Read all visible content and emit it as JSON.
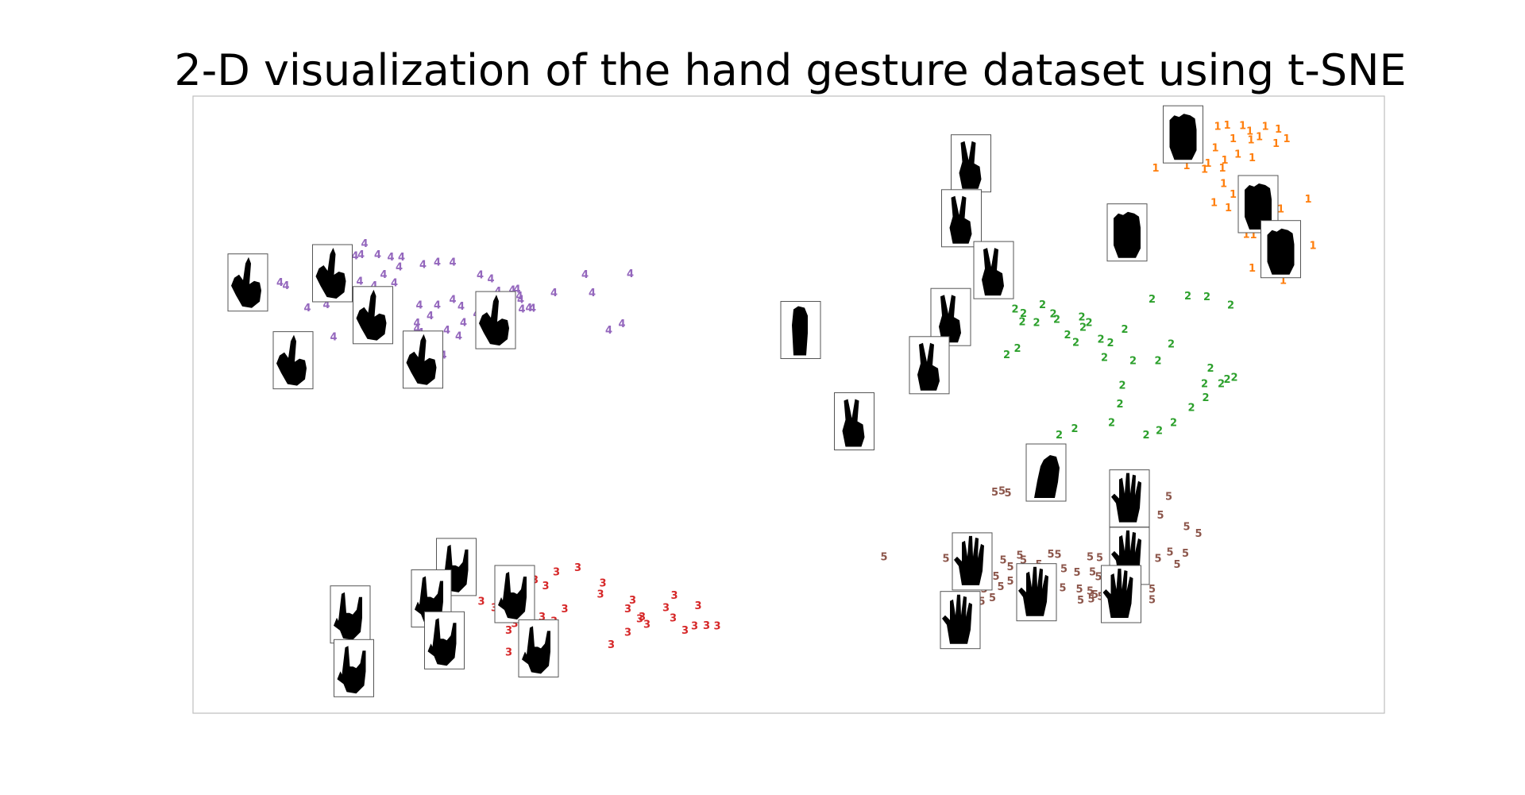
{
  "chart_data": {
    "type": "scatter",
    "title": "2-D visualization of the hand gesture dataset using t-SNE",
    "xlabel": "",
    "ylabel": "",
    "axes_visible": false,
    "grid": false,
    "legend": "none",
    "marker_style": "class-digit text labels with gesture image thumbnails",
    "colors": {
      "1": "#ff7f0e",
      "2": "#2ca02c",
      "3": "#d62728",
      "4": "#9467bd",
      "5": "#8c564b"
    },
    "series": [
      {
        "label": "1",
        "points": [
          [
            0.86,
            0.95
          ],
          [
            0.868,
            0.952
          ],
          [
            0.881,
            0.951
          ],
          [
            0.887,
            0.942
          ],
          [
            0.9,
            0.95
          ],
          [
            0.911,
            0.945
          ],
          [
            0.918,
            0.93
          ],
          [
            0.873,
            0.93
          ],
          [
            0.888,
            0.928
          ],
          [
            0.895,
            0.933
          ],
          [
            0.909,
            0.922
          ],
          [
            0.839,
            0.899
          ],
          [
            0.835,
            0.907
          ],
          [
            0.808,
            0.882
          ],
          [
            0.818,
            0.9
          ],
          [
            0.843,
            0.923
          ],
          [
            0.858,
            0.915
          ],
          [
            0.877,
            0.905
          ],
          [
            0.889,
            0.899
          ],
          [
            0.866,
            0.895
          ],
          [
            0.852,
            0.89
          ],
          [
            0.864,
            0.882
          ],
          [
            0.849,
            0.88
          ],
          [
            0.834,
            0.886
          ],
          [
            0.883,
            0.86
          ],
          [
            0.865,
            0.857
          ],
          [
            0.873,
            0.84
          ],
          [
            0.857,
            0.826
          ],
          [
            0.885,
            0.853
          ],
          [
            0.869,
            0.818
          ],
          [
            0.913,
            0.816
          ],
          [
            0.936,
            0.832
          ],
          [
            0.884,
            0.775
          ],
          [
            0.89,
            0.774
          ],
          [
            0.908,
            0.771
          ],
          [
            0.921,
            0.762
          ],
          [
            0.94,
            0.757
          ],
          [
            0.889,
            0.72
          ],
          [
            0.915,
            0.7
          ]
        ]
      },
      {
        "label": "2",
        "points": [
          [
            0.69,
            0.654
          ],
          [
            0.697,
            0.647
          ],
          [
            0.713,
            0.661
          ],
          [
            0.722,
            0.646
          ],
          [
            0.725,
            0.637
          ],
          [
            0.746,
            0.641
          ],
          [
            0.752,
            0.632
          ],
          [
            0.708,
            0.632
          ],
          [
            0.696,
            0.633
          ],
          [
            0.734,
            0.612
          ],
          [
            0.747,
            0.624
          ],
          [
            0.741,
            0.6
          ],
          [
            0.762,
            0.605
          ],
          [
            0.77,
            0.599
          ],
          [
            0.782,
            0.621
          ],
          [
            0.765,
            0.575
          ],
          [
            0.805,
            0.67
          ],
          [
            0.835,
            0.675
          ],
          [
            0.851,
            0.674
          ],
          [
            0.821,
            0.597
          ],
          [
            0.854,
            0.558
          ],
          [
            0.849,
            0.533
          ],
          [
            0.863,
            0.533
          ],
          [
            0.874,
            0.543
          ],
          [
            0.85,
            0.51
          ],
          [
            0.838,
            0.494
          ],
          [
            0.823,
            0.47
          ],
          [
            0.811,
            0.457
          ],
          [
            0.81,
            0.57
          ],
          [
            0.789,
            0.57
          ],
          [
            0.78,
            0.53
          ],
          [
            0.778,
            0.5
          ],
          [
            0.771,
            0.47
          ],
          [
            0.74,
            0.46
          ],
          [
            0.727,
            0.45
          ],
          [
            0.683,
            0.58
          ],
          [
            0.692,
            0.59
          ],
          [
            0.868,
            0.54
          ],
          [
            0.871,
            0.66
          ],
          [
            0.8,
            0.45
          ]
        ]
      },
      {
        "label": "3",
        "points": [
          [
            0.215,
            0.22
          ],
          [
            0.218,
            0.21
          ],
          [
            0.235,
            0.2
          ],
          [
            0.242,
            0.18
          ],
          [
            0.259,
            0.195
          ],
          [
            0.263,
            0.199
          ],
          [
            0.263,
            0.174
          ],
          [
            0.287,
            0.215
          ],
          [
            0.296,
            0.205
          ],
          [
            0.305,
            0.228
          ],
          [
            0.323,
            0.235
          ],
          [
            0.344,
            0.21
          ],
          [
            0.342,
            0.192
          ],
          [
            0.369,
            0.182
          ],
          [
            0.365,
            0.168
          ],
          [
            0.397,
            0.17
          ],
          [
            0.403,
            0.153
          ],
          [
            0.421,
            0.14
          ],
          [
            0.431,
            0.141
          ],
          [
            0.413,
            0.133
          ],
          [
            0.365,
            0.13
          ],
          [
            0.265,
            0.133
          ],
          [
            0.27,
            0.144
          ],
          [
            0.276,
            0.128
          ],
          [
            0.265,
            0.098
          ],
          [
            0.293,
            0.155
          ],
          [
            0.303,
            0.148
          ],
          [
            0.377,
            0.155
          ],
          [
            0.381,
            0.143
          ],
          [
            0.44,
            0.14
          ],
          [
            0.404,
            0.19
          ],
          [
            0.424,
            0.173
          ],
          [
            0.219,
            0.082
          ],
          [
            0.288,
            0.108
          ],
          [
            0.351,
            0.11
          ],
          [
            0.375,
            0.152
          ],
          [
            0.312,
            0.168
          ],
          [
            0.253,
            0.17
          ]
        ]
      },
      {
        "label": "4",
        "points": [
          [
            0.104,
            0.744
          ],
          [
            0.115,
            0.74
          ],
          [
            0.124,
            0.739
          ],
          [
            0.136,
            0.74
          ],
          [
            0.141,
            0.742
          ],
          [
            0.155,
            0.742
          ],
          [
            0.166,
            0.738
          ],
          [
            0.175,
            0.738
          ],
          [
            0.144,
            0.76
          ],
          [
            0.173,
            0.722
          ],
          [
            0.193,
            0.726
          ],
          [
            0.205,
            0.73
          ],
          [
            0.218,
            0.73
          ],
          [
            0.241,
            0.709
          ],
          [
            0.16,
            0.71
          ],
          [
            0.169,
            0.696
          ],
          [
            0.128,
            0.701
          ],
          [
            0.14,
            0.699
          ],
          [
            0.152,
            0.692
          ],
          [
            0.073,
            0.697
          ],
          [
            0.078,
            0.692
          ],
          [
            0.096,
            0.656
          ],
          [
            0.112,
            0.661
          ],
          [
            0.125,
            0.672
          ],
          [
            0.163,
            0.675
          ],
          [
            0.19,
            0.66
          ],
          [
            0.205,
            0.66
          ],
          [
            0.218,
            0.669
          ],
          [
            0.188,
            0.631
          ],
          [
            0.191,
            0.616
          ],
          [
            0.201,
            0.589
          ],
          [
            0.21,
            0.579
          ],
          [
            0.25,
            0.703
          ],
          [
            0.256,
            0.683
          ],
          [
            0.268,
            0.685
          ],
          [
            0.274,
            0.675
          ],
          [
            0.272,
            0.686
          ],
          [
            0.282,
            0.656
          ],
          [
            0.285,
            0.655
          ],
          [
            0.225,
            0.658
          ],
          [
            0.238,
            0.646
          ],
          [
            0.227,
            0.632
          ],
          [
            0.223,
            0.61
          ],
          [
            0.213,
            0.62
          ],
          [
            0.199,
            0.643
          ],
          [
            0.188,
            0.622
          ],
          [
            0.275,
            0.669
          ],
          [
            0.276,
            0.654
          ],
          [
            0.303,
            0.68
          ],
          [
            0.329,
            0.71
          ],
          [
            0.335,
            0.68
          ],
          [
            0.36,
            0.63
          ],
          [
            0.349,
            0.62
          ],
          [
            0.367,
            0.711
          ],
          [
            0.118,
            0.609
          ]
        ]
      },
      {
        "label": "5",
        "points": [
          [
            0.673,
            0.357
          ],
          [
            0.679,
            0.359
          ],
          [
            0.684,
            0.356
          ],
          [
            0.58,
            0.252
          ],
          [
            0.632,
            0.25
          ],
          [
            0.641,
            0.249
          ],
          [
            0.694,
            0.255
          ],
          [
            0.72,
            0.257
          ],
          [
            0.726,
            0.256
          ],
          [
            0.753,
            0.252
          ],
          [
            0.761,
            0.251
          ],
          [
            0.68,
            0.247
          ],
          [
            0.686,
            0.236
          ],
          [
            0.697,
            0.247
          ],
          [
            0.71,
            0.24
          ],
          [
            0.731,
            0.233
          ],
          [
            0.742,
            0.227
          ],
          [
            0.755,
            0.228
          ],
          [
            0.663,
            0.228
          ],
          [
            0.674,
            0.221
          ],
          [
            0.678,
            0.204
          ],
          [
            0.686,
            0.213
          ],
          [
            0.694,
            0.21
          ],
          [
            0.711,
            0.208
          ],
          [
            0.73,
            0.202
          ],
          [
            0.744,
            0.2
          ],
          [
            0.753,
            0.197
          ],
          [
            0.757,
            0.191
          ],
          [
            0.762,
            0.188
          ],
          [
            0.773,
            0.196
          ],
          [
            0.76,
            0.22
          ],
          [
            0.772,
            0.225
          ],
          [
            0.652,
            0.205
          ],
          [
            0.664,
            0.2
          ],
          [
            0.671,
            0.186
          ],
          [
            0.662,
            0.18
          ],
          [
            0.745,
            0.182
          ],
          [
            0.754,
            0.184
          ],
          [
            0.768,
            0.179
          ],
          [
            0.805,
            0.2
          ],
          [
            0.81,
            0.25
          ],
          [
            0.82,
            0.26
          ],
          [
            0.833,
            0.258
          ],
          [
            0.834,
            0.301
          ],
          [
            0.844,
            0.29
          ],
          [
            0.819,
            0.35
          ],
          [
            0.812,
            0.32
          ],
          [
            0.826,
            0.24
          ],
          [
            0.7,
            0.208
          ],
          [
            0.805,
            0.183
          ]
        ]
      }
    ],
    "thumbnails": [
      {
        "label": "4",
        "gesture": "index",
        "x": 0.046,
        "y": 0.698
      },
      {
        "label": "4",
        "gesture": "index",
        "x": 0.117,
        "y": 0.713
      },
      {
        "label": "4",
        "gesture": "index",
        "x": 0.151,
        "y": 0.645
      },
      {
        "label": "4",
        "gesture": "index",
        "x": 0.084,
        "y": 0.572
      },
      {
        "label": "4",
        "gesture": "index",
        "x": 0.193,
        "y": 0.573
      },
      {
        "label": "4",
        "gesture": "index",
        "x": 0.254,
        "y": 0.637
      },
      {
        "label": "3",
        "gesture": "horns",
        "x": 0.221,
        "y": 0.237
      },
      {
        "label": "3",
        "gesture": "horns",
        "x": 0.2,
        "y": 0.186
      },
      {
        "label": "3",
        "gesture": "horns",
        "x": 0.27,
        "y": 0.193
      },
      {
        "label": "3",
        "gesture": "horns",
        "x": 0.132,
        "y": 0.16
      },
      {
        "label": "3",
        "gesture": "horns",
        "x": 0.211,
        "y": 0.118
      },
      {
        "label": "3",
        "gesture": "horns",
        "x": 0.29,
        "y": 0.105
      },
      {
        "label": "3",
        "gesture": "horns",
        "x": 0.135,
        "y": 0.073
      },
      {
        "label": "2",
        "gesture": "victory",
        "x": 0.653,
        "y": 0.891
      },
      {
        "label": "2",
        "gesture": "victory",
        "x": 0.645,
        "y": 0.802
      },
      {
        "label": "2",
        "gesture": "victory",
        "x": 0.672,
        "y": 0.718
      },
      {
        "label": "2",
        "gesture": "victory",
        "x": 0.636,
        "y": 0.642
      },
      {
        "label": "2",
        "gesture": "victory",
        "x": 0.618,
        "y": 0.564
      },
      {
        "label": "2",
        "gesture": "fist-up",
        "x": 0.51,
        "y": 0.621
      },
      {
        "label": "2",
        "gesture": "victory",
        "x": 0.555,
        "y": 0.473
      },
      {
        "label": "1",
        "gesture": "fist",
        "x": 0.831,
        "y": 0.938
      },
      {
        "label": "1",
        "gesture": "fist",
        "x": 0.784,
        "y": 0.779
      },
      {
        "label": "1",
        "gesture": "fist",
        "x": 0.894,
        "y": 0.825
      },
      {
        "label": "1",
        "gesture": "fist",
        "x": 0.913,
        "y": 0.752
      },
      {
        "label": "5",
        "gesture": "fist-side",
        "x": 0.716,
        "y": 0.39
      },
      {
        "label": "5",
        "gesture": "open",
        "x": 0.786,
        "y": 0.348
      },
      {
        "label": "5",
        "gesture": "open",
        "x": 0.786,
        "y": 0.255
      },
      {
        "label": "5",
        "gesture": "open",
        "x": 0.779,
        "y": 0.193
      },
      {
        "label": "5",
        "gesture": "open",
        "x": 0.654,
        "y": 0.246
      },
      {
        "label": "5",
        "gesture": "open",
        "x": 0.708,
        "y": 0.196
      },
      {
        "label": "5",
        "gesture": "open",
        "x": 0.644,
        "y": 0.151
      }
    ]
  }
}
